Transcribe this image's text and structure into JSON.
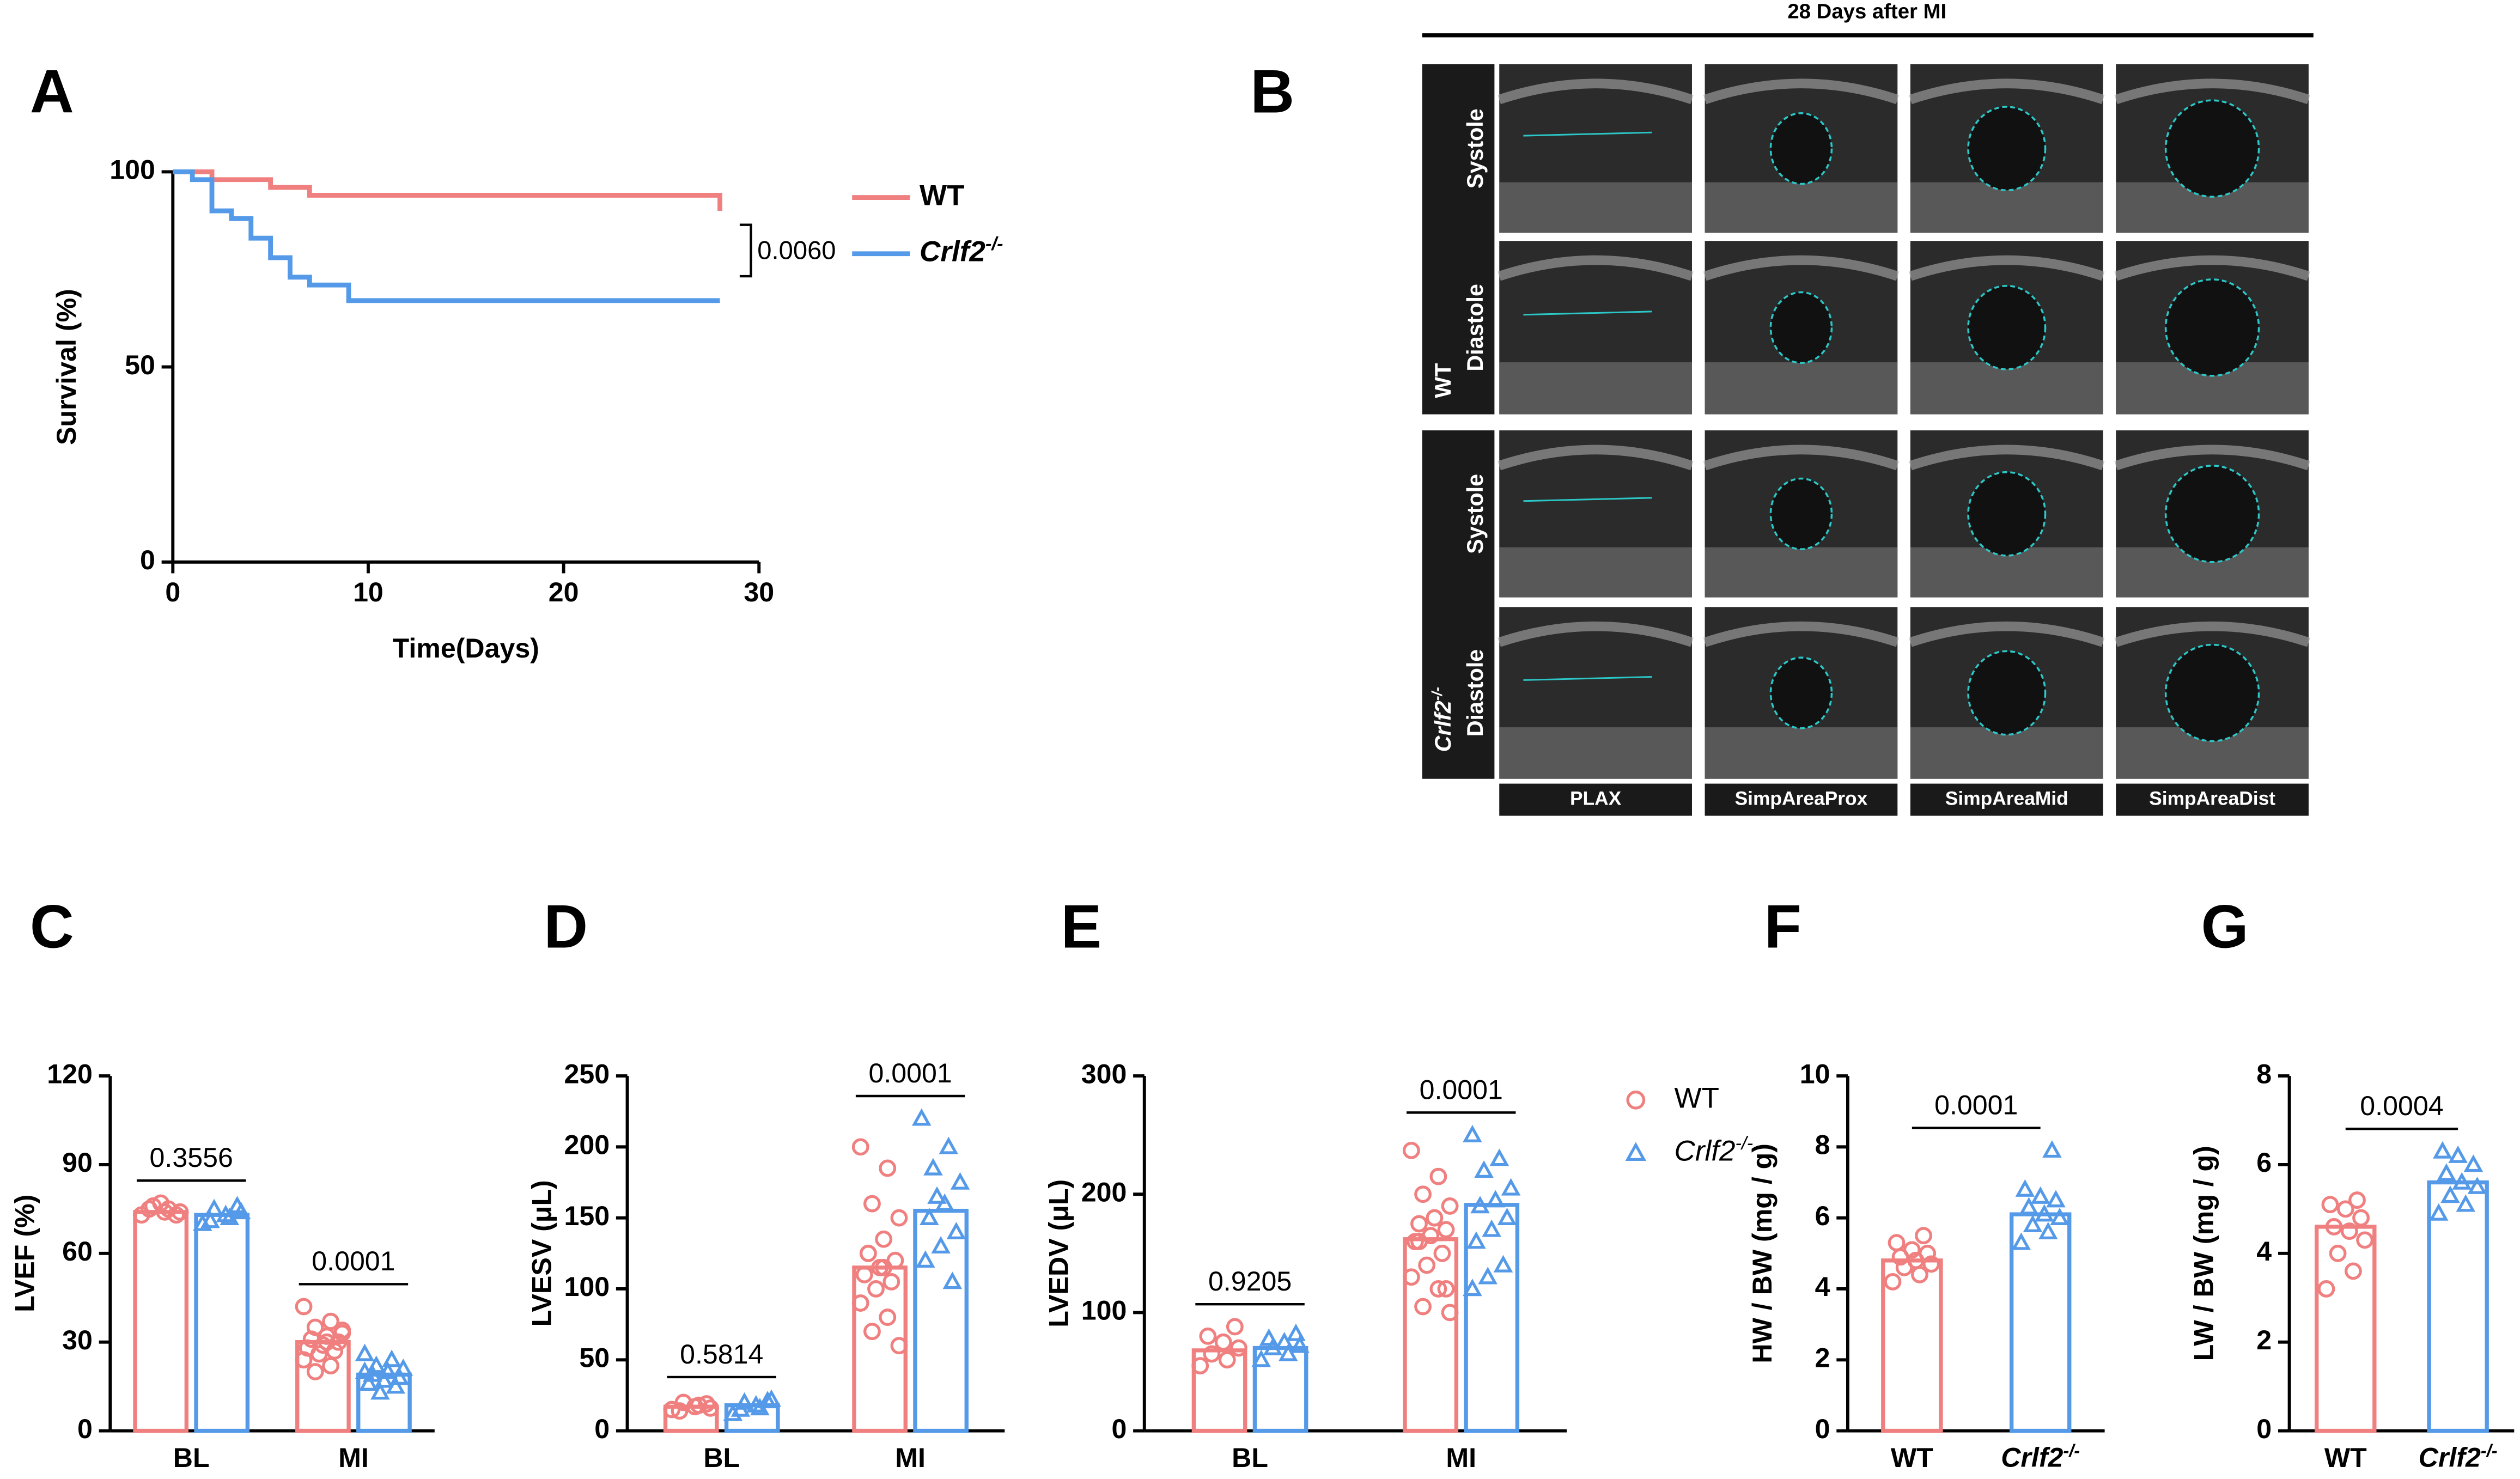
{
  "chart_data": [
    {
      "type": "step",
      "panel": "A",
      "xlabel": "Time(Days)",
      "ylabel": "Survival (%)",
      "xlim": [
        0,
        30
      ],
      "ylim": [
        0,
        100
      ],
      "xticks": [
        0,
        10,
        20,
        30
      ],
      "yticks": [
        0,
        50,
        100
      ],
      "annotation": "0.0060",
      "legend": true,
      "series": [
        {
          "name": "WT",
          "color": "#f08080",
          "x": [
            0,
            1,
            2,
            5,
            7,
            28,
            28
          ],
          "values": [
            100,
            100,
            98,
            96,
            94,
            94,
            90
          ]
        },
        {
          "name": "Crlf2-/-",
          "color": "#559ae8",
          "x": [
            0,
            1,
            2,
            3,
            4,
            5,
            6,
            7,
            9,
            28
          ],
          "values": [
            100,
            98,
            90,
            88,
            83,
            78,
            73,
            71,
            67,
            67
          ]
        }
      ]
    },
    {
      "type": "bar",
      "panel": "C",
      "ylabel": "LVEF (%)",
      "categories": [
        "BL",
        "MI"
      ],
      "ylim": [
        0,
        120
      ],
      "yticks": [
        0,
        30,
        60,
        90,
        120
      ],
      "pvalues": [
        "0.3556",
        "0.0001"
      ],
      "series": [
        {
          "color": "#f08080",
          "marker": "circle",
          "values": [
            74,
            30
          ],
          "points": [
            [
              73,
              75,
              76,
              74,
              74,
              75,
              73,
              77
            ],
            [
              42,
              37,
              35,
              33,
              32,
              31,
              30,
              29,
              28,
              27,
              26,
              24,
              22,
              20,
              34,
              30
            ]
          ]
        },
        {
          "color": "#559ae8",
          "marker": "triangle",
          "values": [
            73,
            19
          ],
          "points": [
            [
              70,
              72,
              75,
              74,
              73,
              71,
              76
            ],
            [
              26,
              24,
              22,
              21,
              20,
              19,
              18,
              17,
              16,
              15,
              13,
              20
            ]
          ]
        }
      ]
    },
    {
      "type": "bar",
      "panel": "D",
      "ylabel": "LVESV (μL)",
      "categories": [
        "BL",
        "MI"
      ],
      "ylim": [
        0,
        250
      ],
      "yticks": [
        0,
        50,
        100,
        150,
        200,
        250
      ],
      "pvalues": [
        "0.5814",
        "0.0001"
      ],
      "series": [
        {
          "color": "#f08080",
          "marker": "circle",
          "values": [
            17,
            115
          ],
          "points": [
            [
              15,
              18,
              20,
              16,
              17,
              14,
              19
            ],
            [
              200,
              185,
              160,
              150,
              135,
              125,
              120,
              115,
              110,
              105,
              100,
              90,
              80,
              70,
              60,
              115,
              125
            ]
          ]
        },
        {
          "color": "#559ae8",
          "marker": "triangle",
          "values": [
            18,
            155
          ],
          "points": [
            [
              12,
              16,
              20,
              22,
              18,
              15,
              21
            ],
            [
              220,
              200,
              185,
              175,
              160,
              150,
              140,
              130,
              120,
              105,
              165
            ]
          ]
        }
      ]
    },
    {
      "type": "bar",
      "panel": "E",
      "ylabel": "LVEDV (μL)",
      "categories": [
        "BL",
        "MI"
      ],
      "ylim": [
        0,
        300
      ],
      "yticks": [
        0,
        100,
        200,
        300
      ],
      "pvalues": [
        "0.9205",
        "0.0001"
      ],
      "legend": true,
      "series": [
        {
          "name": "WT",
          "color": "#f08080",
          "marker": "circle",
          "values": [
            68,
            162
          ],
          "points": [
            [
              55,
              60,
              65,
              70,
              75,
              80,
              88
            ],
            [
              237,
              215,
              200,
              190,
              180,
              175,
              170,
              165,
              160,
              150,
              140,
              130,
              120,
              105,
              100,
              180,
              160,
              120
            ]
          ]
        },
        {
          "name": "Crlf2-/-",
          "color": "#559ae8",
          "marker": "triangle",
          "values": [
            70,
            191
          ],
          "points": [
            [
              60,
              65,
              70,
              72,
              75,
              78,
              82
            ],
            [
              250,
              230,
              220,
              205,
              195,
              190,
              180,
              170,
              160,
              140,
              130,
              120
            ]
          ]
        }
      ]
    },
    {
      "type": "bar",
      "panel": "F",
      "ylabel": "HW / BW (mg / g)",
      "categories": [
        "WT",
        "Crlf2-/-"
      ],
      "ylim": [
        0,
        10
      ],
      "yticks": [
        0,
        2,
        4,
        6,
        8,
        10
      ],
      "pvalue": "0.0001",
      "colors": [
        "#f08080",
        "#559ae8"
      ],
      "markers": [
        "circle",
        "triangle"
      ],
      "values": [
        4.8,
        6.1
      ],
      "points": [
        [
          4.2,
          4.4,
          4.6,
          4.7,
          4.8,
          4.9,
          5.0,
          5.1,
          5.3,
          5.5
        ],
        [
          5.3,
          5.6,
          5.8,
          6.0,
          6.1,
          6.3,
          6.5,
          6.6,
          6.8,
          7.9
        ]
      ]
    },
    {
      "type": "bar",
      "panel": "G",
      "ylabel": "LW / BW (mg / g)",
      "categories": [
        "WT",
        "Crlf2-/-"
      ],
      "ylim": [
        0,
        8
      ],
      "yticks": [
        0,
        2,
        4,
        6,
        8
      ],
      "pvalue": "0.0004",
      "colors": [
        "#f08080",
        "#559ae8"
      ],
      "markers": [
        "circle",
        "triangle"
      ],
      "values": [
        4.6,
        5.6
      ],
      "points": [
        [
          3.2,
          3.6,
          4.0,
          4.3,
          4.5,
          4.6,
          4.8,
          5.0,
          5.1,
          5.2
        ],
        [
          4.9,
          5.1,
          5.3,
          5.5,
          5.6,
          5.8,
          6.0,
          6.2,
          6.3
        ]
      ]
    }
  ],
  "panel_b": {
    "panel": "B",
    "title": "28 Days after MI",
    "rows": [
      "Systole",
      "Diastole",
      "Systole",
      "Diastole"
    ],
    "groups": [
      "WT",
      "Crlf2-/-"
    ],
    "columns": [
      "PLAX",
      "SimpAreaProx",
      "SimpAreaMid",
      "SimpAreaDist"
    ]
  }
}
